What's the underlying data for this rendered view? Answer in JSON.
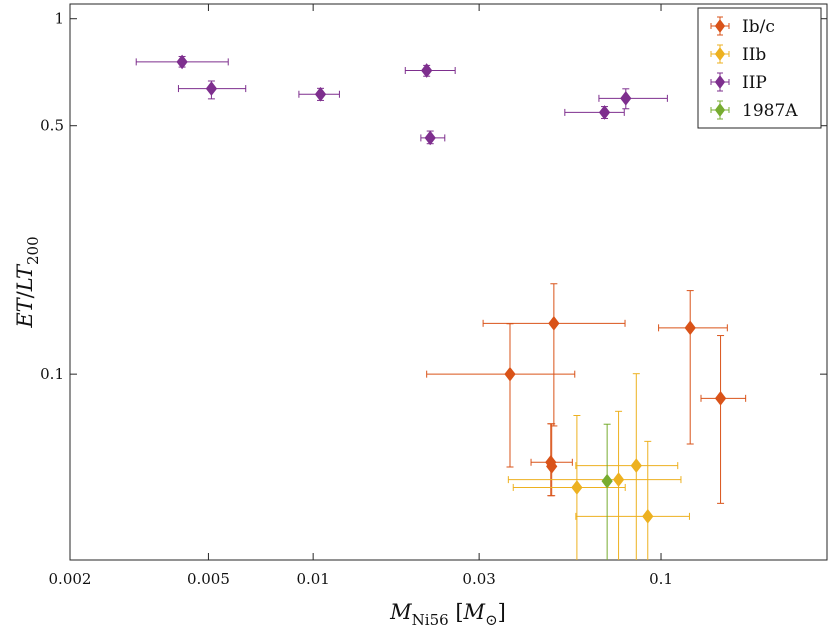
{
  "chart_data": {
    "type": "scatter",
    "xlabel": "M_Ni56 [M_⊙]",
    "ylabel": "ET/LT_200",
    "xscale": "log",
    "yscale": "log",
    "xlim": [
      0.002,
      0.3
    ],
    "ylim": [
      0.03,
      1.1
    ],
    "xticks": [
      {
        "value": 0.002,
        "label": "0.002"
      },
      {
        "value": 0.005,
        "label": "0.005"
      },
      {
        "value": 0.01,
        "label": "0.01"
      },
      {
        "value": 0.03,
        "label": "0.03"
      },
      {
        "value": 0.1,
        "label": "0.1"
      }
    ],
    "yticks": [
      {
        "value": 0.1,
        "label": "0.1"
      },
      {
        "value": 0.5,
        "label": "0.5"
      },
      {
        "value": 1,
        "label": "1"
      }
    ],
    "legend_position": "top-right",
    "grid": false,
    "series": [
      {
        "name": "Ib/c",
        "color": "#d95319",
        "points": [
          {
            "x": 0.0368,
            "y": 0.1,
            "xerr": [
              0.0212,
              0.0565
            ],
            "yerr": [
              0.0548,
              0.1386
            ]
          },
          {
            "x": 0.0492,
            "y": 0.139,
            "xerr": [
              0.0308,
              0.0788
            ],
            "yerr": [
              0.0715,
              0.1796
            ]
          },
          {
            "x": 0.0482,
            "y": 0.0565,
            "xerr": [
              0.0423,
              0.0556
            ],
            "yerr": [
              0.0455,
              0.0725
            ]
          },
          {
            "x": 0.0485,
            "y": 0.055,
            "xerr": [
              0.0485,
              0.0485
            ],
            "yerr": [
              0.0455,
              0.0725
            ]
          },
          {
            "x": 0.1213,
            "y": 0.135,
            "xerr": [
              0.0984,
              0.1551
            ],
            "yerr": [
              0.0636,
              0.1718
            ]
          },
          {
            "x": 0.1483,
            "y": 0.0855,
            "xerr": [
              0.1303,
              0.1751
            ],
            "yerr": [
              0.0433,
              0.1284
            ]
          }
        ]
      },
      {
        "name": "IIb",
        "color": "#edb120",
        "points": [
          {
            "x": 0.0573,
            "y": 0.048,
            "xerr": [
              0.0376,
              0.0789
            ],
            "yerr": [
              0.0286,
              0.0765
            ]
          },
          {
            "x": 0.0849,
            "y": 0.0553,
            "xerr": [
              0.0569,
              0.1117
            ],
            "yerr": [
              0.0286,
              0.1003
            ]
          },
          {
            "x": 0.0755,
            "y": 0.0505,
            "xerr": [
              0.0364,
              0.1141
            ],
            "yerr": [
              0.0286,
              0.0786
            ]
          },
          {
            "x": 0.0916,
            "y": 0.0398,
            "xerr": [
              0.0569,
              0.1207
            ],
            "yerr": [
              0.0286,
              0.0647
            ]
          }
        ]
      },
      {
        "name": "IIP",
        "color": "#7e2f8e",
        "points": [
          {
            "x": 0.0042,
            "y": 0.756,
            "xerr": [
              0.0031,
              0.0057
            ],
            "yerr": [
              0.731,
              0.783
            ]
          },
          {
            "x": 0.0051,
            "y": 0.636,
            "xerr": [
              0.0041,
              0.0064
            ],
            "yerr": [
              0.595,
              0.668
            ]
          },
          {
            "x": 0.0105,
            "y": 0.613,
            "xerr": [
              0.0091,
              0.0119
            ],
            "yerr": [
              0.589,
              0.637
            ]
          },
          {
            "x": 0.0212,
            "y": 0.715,
            "xerr": [
              0.0184,
              0.0256
            ],
            "yerr": [
              0.689,
              0.739
            ]
          },
          {
            "x": 0.0217,
            "y": 0.462,
            "xerr": [
              0.0204,
              0.0239
            ],
            "yerr": [
              0.445,
              0.483
            ]
          },
          {
            "x": 0.0688,
            "y": 0.545,
            "xerr": [
              0.0529,
              0.0784
            ],
            "yerr": [
              0.524,
              0.566
            ]
          },
          {
            "x": 0.0792,
            "y": 0.597,
            "xerr": [
              0.0663,
              0.1043
            ],
            "yerr": [
              0.558,
              0.635
            ]
          }
        ]
      },
      {
        "name": "1987A",
        "color": "#77ac30",
        "points": [
          {
            "x": 0.07,
            "y": 0.05,
            "xerr": [
              0.07,
              0.07
            ],
            "yerr": [
              0.0286,
              0.0723
            ]
          }
        ]
      }
    ]
  }
}
